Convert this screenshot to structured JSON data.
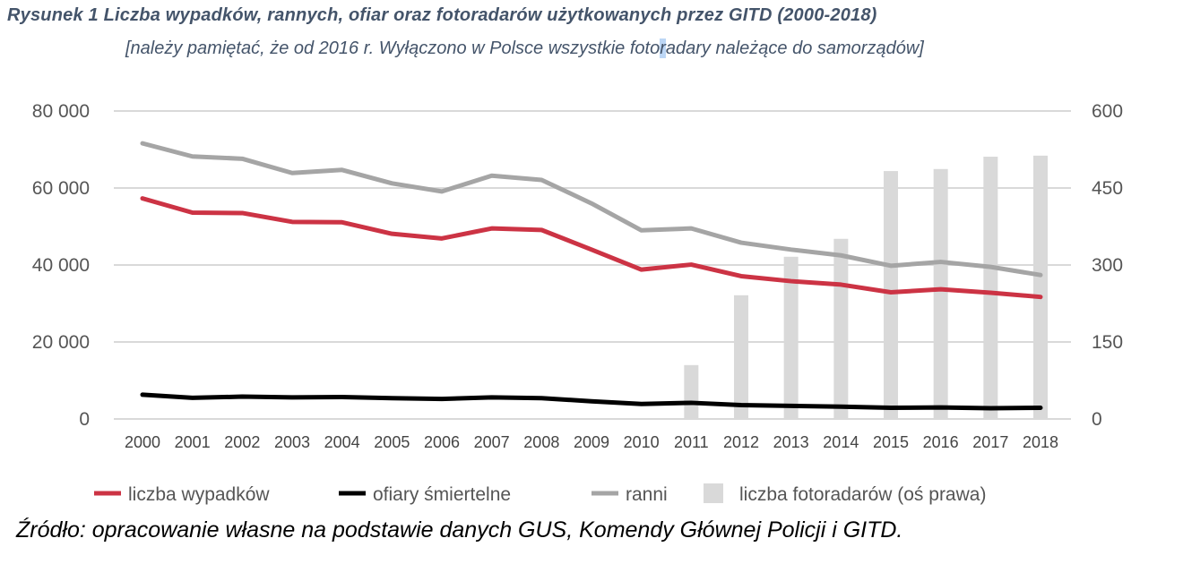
{
  "chart_data": {
    "type": "bar+line",
    "title": "Rysunek 1 Liczba wypadków, rannych, ofiar oraz fotoradarów użytkowanych przez GITD  (2000-2018)",
    "subtitle_part1": "[należy pamiętać, że od 2016 r. Wyłączono w Polsce wszystkie foto",
    "subtitle_highlight": "r",
    "subtitle_part2": "adary należące do samorządów]",
    "source": "Źródło: opracowanie własne na podstawie danych GUS, Komendy Głównej Policji i GITD.",
    "categories": [
      "2000",
      "2001",
      "2002",
      "2003",
      "2004",
      "2005",
      "2006",
      "2007",
      "2008",
      "2009",
      "2010",
      "2011",
      "2012",
      "2013",
      "2014",
      "2015",
      "2016",
      "2017",
      "2018"
    ],
    "left_axis": {
      "ylim": [
        0,
        80000
      ],
      "ticks": [
        0,
        20000,
        40000,
        60000,
        80000
      ],
      "tick_labels": [
        "0",
        "20 000",
        "40 000",
        "60 000",
        "80 000"
      ]
    },
    "right_axis": {
      "ylim": [
        0,
        600
      ],
      "ticks": [
        0,
        150,
        300,
        450,
        600
      ],
      "tick_labels": [
        "0",
        "150",
        "300",
        "450",
        "600"
      ]
    },
    "grid": true,
    "legend_position": "bottom",
    "series": [
      {
        "name": "liczba wypadków",
        "type": "line",
        "axis": "left",
        "color": "#cc3344",
        "values": [
          57300,
          53600,
          53500,
          51200,
          51100,
          48100,
          46900,
          49500,
          49100,
          44000,
          38800,
          40100,
          37100,
          35800,
          34900,
          32900,
          33700,
          32800,
          31700
        ]
      },
      {
        "name": "ofiary śmiertelne",
        "type": "line",
        "axis": "left",
        "color": "#000000",
        "values": [
          6300,
          5500,
          5800,
          5600,
          5700,
          5400,
          5200,
          5600,
          5400,
          4600,
          3900,
          4200,
          3600,
          3400,
          3200,
          2900,
          3000,
          2800,
          2900
        ]
      },
      {
        "name": "ranni",
        "type": "line",
        "axis": "left",
        "color": "#a5a5a5",
        "values": [
          71600,
          68200,
          67600,
          63900,
          64700,
          61200,
          59100,
          63200,
          62100,
          56000,
          49000,
          49500,
          45800,
          44000,
          42500,
          39800,
          40800,
          39500,
          37400
        ]
      },
      {
        "name": "liczba fotoradarów (oś prawa)",
        "type": "bar",
        "axis": "right",
        "color": "#d9d9d9",
        "values": [
          0,
          0,
          0,
          0,
          0,
          0,
          0,
          0,
          0,
          0,
          0,
          105,
          241,
          316,
          351,
          483,
          487,
          511,
          513
        ]
      }
    ]
  }
}
